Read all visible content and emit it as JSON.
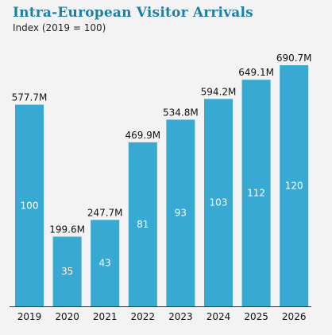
{
  "chart_data": {
    "type": "bar",
    "title": "Intra-European Visitor Arrivals",
    "subtitle": "Index (2019 = 100)",
    "categories": [
      "2019",
      "2020",
      "2021",
      "2022",
      "2023",
      "2024",
      "2025",
      "2026"
    ],
    "values": [
      577.7,
      199.6,
      247.7,
      469.9,
      534.8,
      594.2,
      649.1,
      690.7
    ],
    "value_labels": [
      "577.7M",
      "199.6M",
      "247.7M",
      "469.9M",
      "534.8M",
      "594.2M",
      "649.1M",
      "690.7M"
    ],
    "index_labels": [
      "100",
      "35",
      "43",
      "81",
      "93",
      "103",
      "112",
      "120"
    ],
    "ylim": [
      0,
      690.7
    ],
    "grid": false,
    "bar_color": "#37a9d3",
    "baseline_color": "#333333",
    "title_color": "#1d7fa6"
  }
}
